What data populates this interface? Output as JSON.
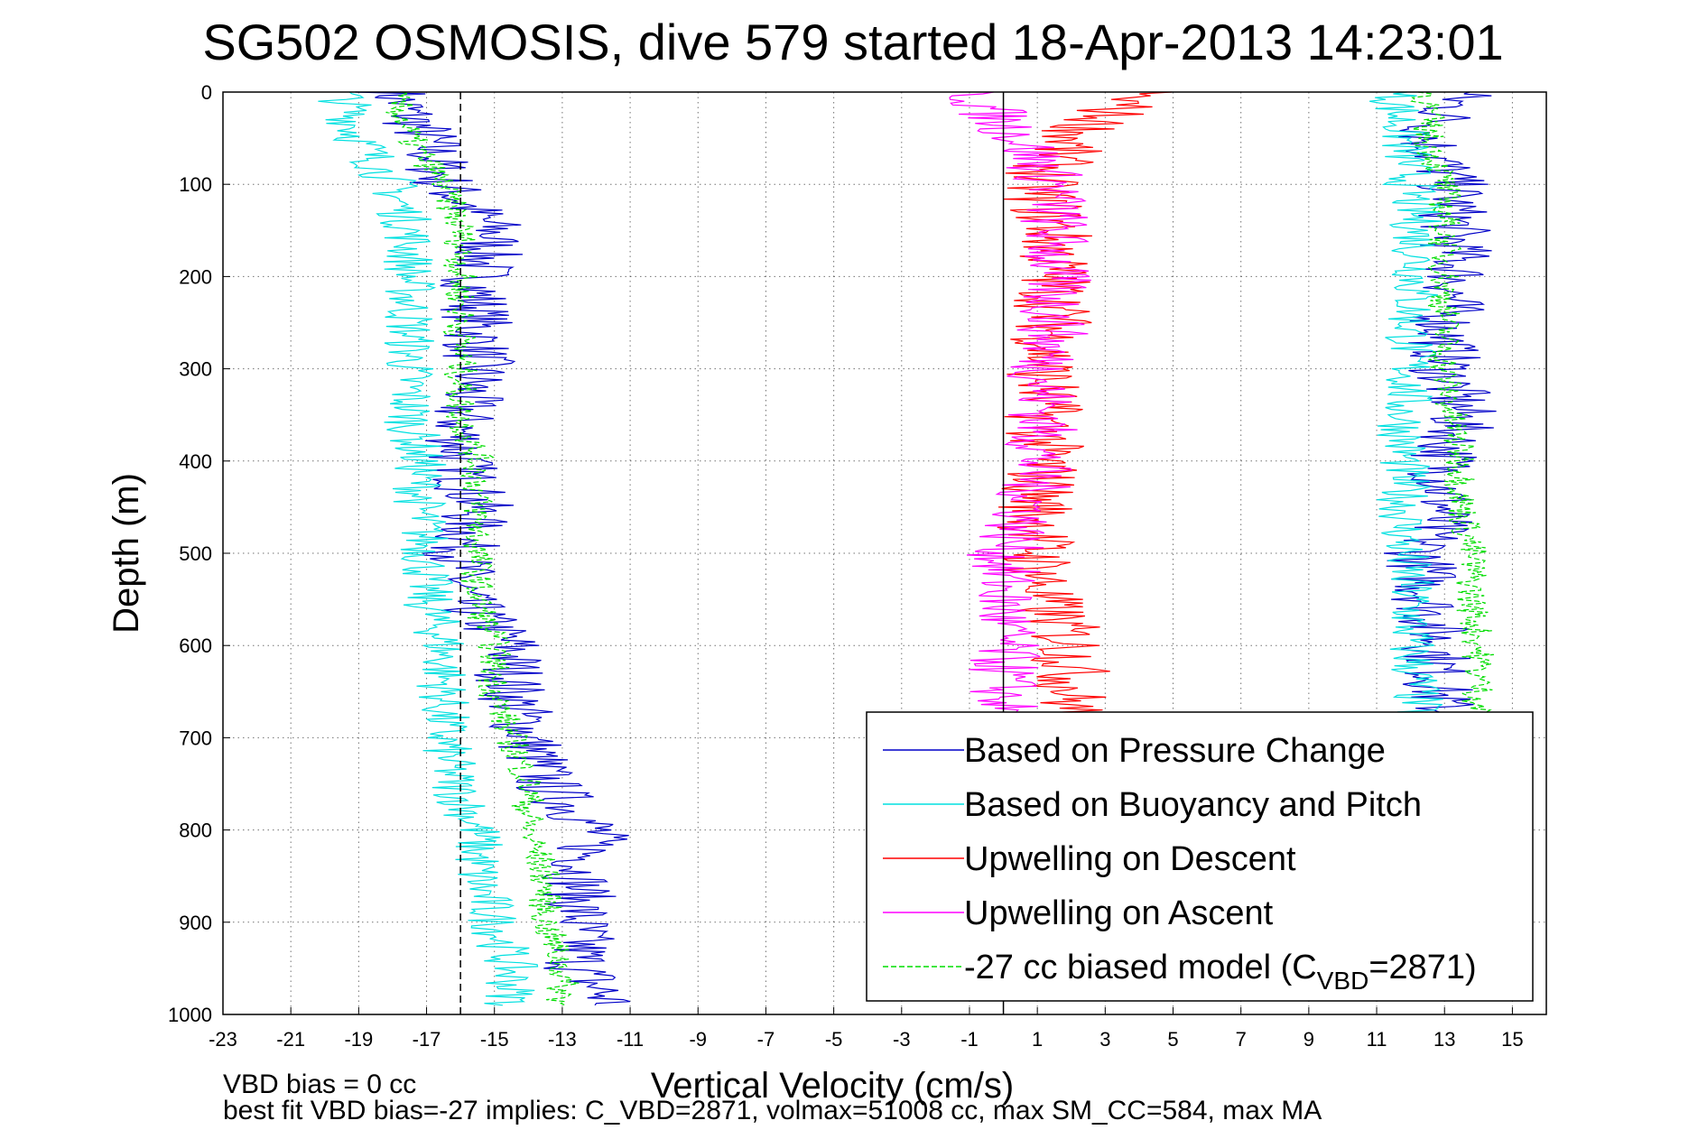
{
  "chart_data": {
    "type": "line",
    "title": "SG502 OSMOSIS, dive 579 started 18-Apr-2013 14:23:01",
    "xlabel": "Vertical Velocity (cm/s)",
    "ylabel": "Depth (m)",
    "xlim": [
      -23,
      16
    ],
    "ylim": [
      0,
      1000
    ],
    "y_reversed": true,
    "x_ticks": [
      -23,
      -21,
      -19,
      -17,
      -15,
      -13,
      -11,
      -9,
      -7,
      -5,
      -3,
      -1,
      1,
      3,
      5,
      7,
      9,
      11,
      13,
      15
    ],
    "y_ticks": [
      0,
      100,
      200,
      300,
      400,
      500,
      600,
      700,
      800,
      900,
      1000
    ],
    "grid": true,
    "legend_position": "bottom-right",
    "reference_lines": [
      {
        "x": 0,
        "style": "solid",
        "color": "#000000"
      },
      {
        "x": -16,
        "style": "dashed",
        "color": "#000000"
      }
    ],
    "series": [
      {
        "name": "Based on Pressure Change",
        "color": "#0000c8",
        "style": "solid",
        "descent": {
          "depth": [
            0,
            50,
            100,
            150,
            200,
            250,
            300,
            350,
            400,
            450,
            500,
            550,
            600,
            650,
            700,
            750,
            800,
            850,
            900,
            950,
            990
          ],
          "w": [
            -18,
            -17,
            -16.5,
            -15,
            -15.5,
            -15.5,
            -15.5,
            -16,
            -16,
            -15.5,
            -16,
            -16,
            -14.5,
            -14.5,
            -14,
            -13.5,
            -12,
            -12.5,
            -12.5,
            -12.5,
            -11.5
          ]
        },
        "ascent": {
          "depth": [
            0,
            50,
            100,
            150,
            200,
            250,
            300,
            350,
            400,
            450,
            500,
            550,
            600,
            650,
            680
          ],
          "w": [
            13.5,
            12.5,
            13.2,
            13.3,
            13.4,
            13.0,
            13.0,
            13.5,
            13.0,
            13.0,
            12.3,
            12.5,
            12.8,
            12.8,
            13.0
          ]
        }
      },
      {
        "name": "Based on Buoyancy and Pitch",
        "color": "#00e0e0",
        "style": "solid",
        "descent": {
          "depth": [
            0,
            50,
            100,
            150,
            200,
            250,
            300,
            350,
            400,
            450,
            500,
            550,
            600,
            650,
            700,
            750,
            800,
            850,
            900,
            950,
            990
          ],
          "w": [
            -19.5,
            -19,
            -18,
            -17.5,
            -17.5,
            -17.5,
            -17.5,
            -17.5,
            -17.2,
            -17.2,
            -17,
            -17,
            -16.5,
            -16.5,
            -16.5,
            -16.2,
            -15.5,
            -15.5,
            -15,
            -14.5,
            -14.5
          ]
        },
        "ascent": {
          "depth": [
            0,
            50,
            100,
            150,
            200,
            250,
            300,
            350,
            400,
            450,
            500,
            550,
            600,
            650,
            680
          ],
          "w": [
            11.5,
            11.8,
            12.0,
            12.2,
            12.2,
            12.0,
            12.0,
            11.8,
            11.8,
            11.8,
            11.8,
            12.0,
            12.0,
            12.2,
            12.2
          ]
        }
      },
      {
        "name": "Upwelling on Descent",
        "color": "#ff0000",
        "style": "solid",
        "depth": [
          0,
          50,
          100,
          150,
          200,
          250,
          300,
          350,
          400,
          450,
          500,
          550,
          600,
          650,
          680
        ],
        "w": [
          4,
          2,
          1,
          1.5,
          1.5,
          1.5,
          1.2,
          1.2,
          1.2,
          1.0,
          1.0,
          1.2,
          2.0,
          2.0,
          2.0
        ]
      },
      {
        "name": "Upwelling on Ascent",
        "color": "#ff00ff",
        "style": "solid",
        "depth": [
          0,
          50,
          100,
          150,
          200,
          250,
          300,
          350,
          400,
          450,
          500,
          550,
          600,
          650,
          680
        ],
        "w": [
          -1,
          0.5,
          1.5,
          1.5,
          1.5,
          1.5,
          1.2,
          1.2,
          1.0,
          0.8,
          0.0,
          0.0,
          0.0,
          0.0,
          0.0
        ]
      },
      {
        "name": "-27 cc biased model (C",
        "name_sub": "VBD",
        "name_suffix": "=2871)",
        "color": "#00dd00",
        "style": "dashed",
        "descent": {
          "depth": [
            0,
            50,
            100,
            150,
            200,
            250,
            300,
            350,
            400,
            450,
            500,
            550,
            600,
            650,
            700,
            750,
            800,
            850,
            900,
            950,
            990
          ],
          "w": [
            -18,
            -17.5,
            -16.5,
            -16,
            -16,
            -16,
            -16,
            -16,
            -15.5,
            -15.5,
            -15.5,
            -15.5,
            -15,
            -15,
            -14.5,
            -14,
            -14,
            -13.5,
            -13.5,
            -13,
            -13
          ]
        },
        "ascent": {
          "depth": [
            0,
            50,
            100,
            150,
            200,
            250,
            300,
            350,
            400,
            450,
            500,
            550,
            600,
            650,
            680
          ],
          "w": [
            12.5,
            12.5,
            13,
            13,
            13,
            13,
            13,
            13.2,
            13.5,
            13.5,
            13.8,
            13.8,
            14,
            14,
            14
          ]
        }
      }
    ]
  },
  "footer": {
    "line1": "VBD bias = 0 cc",
    "line2": "best fit VBD bias=-27 implies: C_VBD=2871, volmax=51008 cc, max SM_CC=584, max MA"
  }
}
